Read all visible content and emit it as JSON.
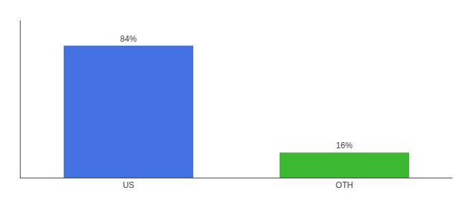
{
  "chart_data": {
    "type": "bar",
    "categories": [
      "US",
      "OTH"
    ],
    "values": [
      84,
      16
    ],
    "value_labels": [
      "84%",
      "16%"
    ],
    "colors": [
      "#4472e3",
      "#3cb832"
    ],
    "ylim": [
      0,
      100
    ],
    "data_labels": true,
    "tick_labels": "x",
    "grid": false
  }
}
